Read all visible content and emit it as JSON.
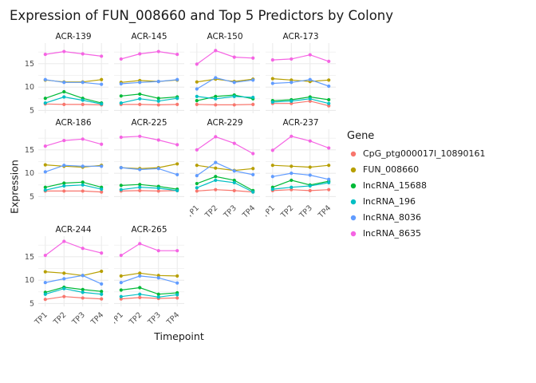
{
  "chart_data": {
    "type": "line",
    "title": "Expression of FUN_008660 and Top 5 Predictors by Colony",
    "xlabel": "Timepoint",
    "ylabel": "Expression",
    "legend_title": "Gene",
    "x_categories": [
      "TP1",
      "TP2",
      "TP3",
      "TP4"
    ],
    "y_ticks": [
      5,
      10,
      15
    ],
    "y_minor_ticks": [
      7.5,
      12.5,
      17.5
    ],
    "ylim": [
      4.4,
      19.4
    ],
    "grid": true,
    "legend_position": "right",
    "gridline_color": "#EBEBEB",
    "series_names": [
      "CpG_ptg000017l_10890161",
      "FUN_008660",
      "lncRNA_15688",
      "lncRNA_196",
      "lncRNA_8036",
      "lncRNA_8635"
    ],
    "series_colors": [
      "#F8766D",
      "#B79F00",
      "#00BA38",
      "#00BFC4",
      "#619CFF",
      "#F564E3"
    ],
    "facets": [
      {
        "colony": "ACR-139",
        "values": [
          [
            6.4,
            6.3,
            6.3,
            6.2
          ],
          [
            11.5,
            11.1,
            11.1,
            11.6
          ],
          [
            7.6,
            9.0,
            7.6,
            6.6
          ],
          [
            6.6,
            7.9,
            7.2,
            6.4
          ],
          [
            11.6,
            11.0,
            11.0,
            10.6
          ],
          [
            17.0,
            17.6,
            17.1,
            16.6
          ]
        ]
      },
      {
        "colony": "ACR-145",
        "values": [
          [
            6.3,
            6.3,
            6.2,
            6.3
          ],
          [
            11.0,
            11.4,
            11.2,
            11.5
          ],
          [
            8.1,
            8.5,
            7.6,
            7.9
          ],
          [
            6.6,
            7.5,
            7.0,
            7.6
          ],
          [
            10.7,
            11.0,
            11.2,
            11.6
          ],
          [
            16.0,
            17.1,
            17.6,
            17.0
          ]
        ]
      },
      {
        "colony": "ACR-150",
        "values": [
          [
            6.3,
            6.2,
            6.2,
            6.3
          ],
          [
            11.1,
            11.7,
            11.2,
            11.7
          ],
          [
            7.1,
            8.0,
            8.3,
            7.5
          ],
          [
            8.0,
            7.5,
            8.0,
            7.8
          ],
          [
            9.6,
            12.0,
            11.0,
            11.5
          ],
          [
            14.9,
            17.8,
            16.4,
            16.2
          ]
        ]
      },
      {
        "colony": "ACR-173",
        "values": [
          [
            6.5,
            6.5,
            7.0,
            6.0
          ],
          [
            11.8,
            11.5,
            11.2,
            11.5
          ],
          [
            7.1,
            7.3,
            7.9,
            7.3
          ],
          [
            6.8,
            7.0,
            7.5,
            6.5
          ],
          [
            10.8,
            11.0,
            11.6,
            10.2
          ],
          [
            15.8,
            16.0,
            16.9,
            15.5
          ]
        ]
      },
      {
        "colony": "ACR-186",
        "values": [
          [
            6.2,
            6.2,
            6.2,
            6.0
          ],
          [
            11.8,
            11.5,
            11.3,
            11.7
          ],
          [
            7.0,
            7.9,
            8.1,
            7.0
          ],
          [
            6.4,
            7.3,
            7.5,
            6.6
          ],
          [
            10.3,
            11.7,
            11.5,
            11.5
          ],
          [
            15.8,
            17.0,
            17.3,
            16.2
          ]
        ]
      },
      {
        "colony": "ACR-225",
        "values": [
          [
            6.2,
            6.3,
            6.2,
            6.3
          ],
          [
            11.2,
            11.0,
            11.2,
            12.0
          ],
          [
            7.4,
            7.6,
            7.2,
            6.6
          ],
          [
            6.5,
            7.0,
            6.8,
            6.3
          ],
          [
            11.2,
            10.8,
            11.0,
            9.7
          ],
          [
            17.7,
            17.9,
            17.1,
            16.1
          ]
        ]
      },
      {
        "colony": "ACR-229",
        "values": [
          [
            6.2,
            6.5,
            6.3,
            6.0
          ],
          [
            11.7,
            11.1,
            10.6,
            11.0
          ],
          [
            7.8,
            9.3,
            8.5,
            6.3
          ],
          [
            6.9,
            8.5,
            8.0,
            6.0
          ],
          [
            9.5,
            12.3,
            10.5,
            9.7
          ],
          [
            15.0,
            17.8,
            16.4,
            14.2
          ]
        ]
      },
      {
        "colony": "ACR-237",
        "values": [
          [
            6.3,
            6.5,
            6.3,
            6.5
          ],
          [
            11.7,
            11.5,
            11.3,
            11.7
          ],
          [
            7.0,
            8.5,
            7.5,
            8.3
          ],
          [
            6.6,
            7.0,
            7.3,
            8.0
          ],
          [
            9.3,
            10.0,
            9.6,
            8.7
          ],
          [
            14.9,
            17.9,
            16.9,
            15.4
          ]
        ]
      },
      {
        "colony": "ACR-244",
        "values": [
          [
            5.9,
            6.5,
            6.2,
            6.0
          ],
          [
            11.8,
            11.5,
            11.0,
            11.9
          ],
          [
            7.4,
            8.5,
            8.0,
            7.6
          ],
          [
            7.0,
            8.2,
            7.4,
            7.0
          ],
          [
            9.5,
            10.3,
            11.0,
            9.2
          ],
          [
            15.3,
            18.3,
            16.8,
            15.8
          ]
        ]
      },
      {
        "colony": "ACR-265",
        "values": [
          [
            6.0,
            6.3,
            6.1,
            6.2
          ],
          [
            10.9,
            11.5,
            11.0,
            10.9
          ],
          [
            7.9,
            8.4,
            7.0,
            7.3
          ],
          [
            6.5,
            7.0,
            6.4,
            6.9
          ],
          [
            9.5,
            10.9,
            10.5,
            9.4
          ],
          [
            15.3,
            17.8,
            16.3,
            16.3
          ]
        ]
      }
    ]
  }
}
